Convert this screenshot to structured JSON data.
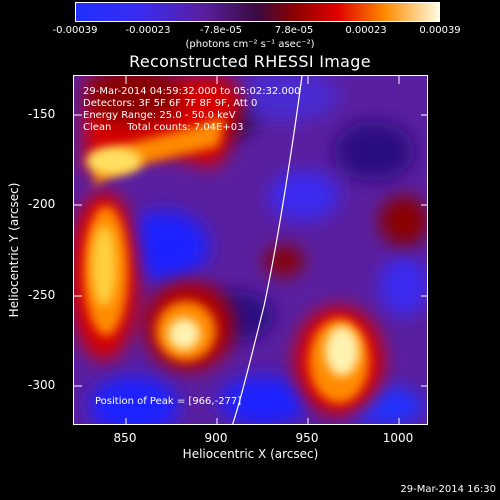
{
  "colorbar": {
    "tick_labels": [
      "-0.00039",
      "-0.00023",
      "-7.8e-05",
      "7.8e-05",
      "0.00023",
      "0.00039"
    ],
    "units": "(photons cm⁻² s⁻¹ asec⁻²)"
  },
  "title": "Reconstructed RHESSI Image",
  "info": {
    "time_range": "29-Mar-2014 04:59:32.000 to 05:02:32.000",
    "detectors": "Detectors: 3F 5F 6F 7F 8F 9F, Att 0",
    "energy_range": "Energy Range: 25.0 - 50.0 keV",
    "algorithm": "Clean     Total counts: 7.04E+03",
    "peak": "Position of Peak = [966,-277]"
  },
  "axes": {
    "xlabel": "Heliocentric X (arcsec)",
    "ylabel": "Heliocentric Y (arcsec)",
    "x_ticks": [
      "850",
      "900",
      "950",
      "1000"
    ],
    "y_ticks": [
      "-150",
      "-200",
      "-250",
      "-300"
    ],
    "x_range": [
      821,
      1016
    ],
    "y_range": [
      -322,
      -128
    ]
  },
  "timestamp": "29-Mar-2014 16:30",
  "colors": {
    "low": "#1b22ff",
    "mid": "#5a1fa0",
    "high": "#d60000",
    "peak": "#fff2b0"
  }
}
